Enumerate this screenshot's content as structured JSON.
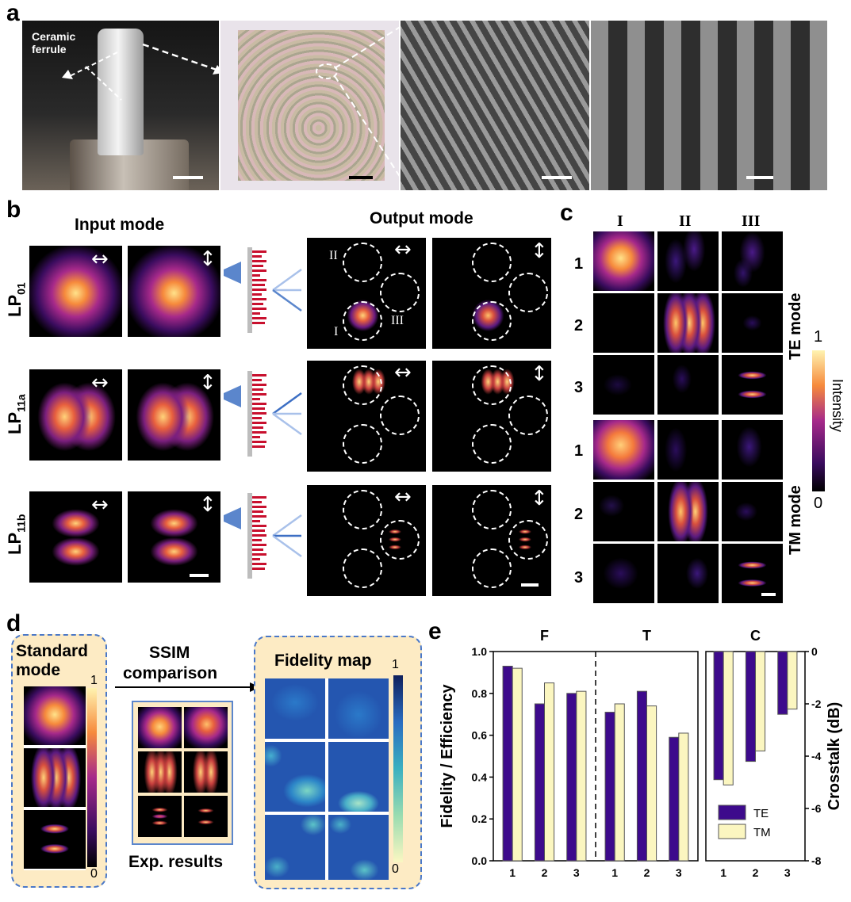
{
  "panels": {
    "a": "a",
    "b": "b",
    "c": "c",
    "d": "d",
    "e": "e"
  },
  "panel_a": {
    "ferrule_label_line1": "Ceramic",
    "ferrule_label_line2": "ferrule"
  },
  "panel_b": {
    "input_heading": "Input mode",
    "output_heading": "Output mode",
    "rows": [
      {
        "base": "LP",
        "sub": "01"
      },
      {
        "base": "LP",
        "sub": "11a"
      },
      {
        "base": "LP",
        "sub": "11b"
      }
    ],
    "roman": {
      "r1": "I",
      "r2": "II",
      "r3": "III"
    }
  },
  "panel_c": {
    "columns": [
      "I",
      "II",
      "III"
    ],
    "rows": [
      "1",
      "2",
      "3",
      "1",
      "2",
      "3"
    ],
    "te_label": "TE mode",
    "tm_label": "TM mode",
    "cbar_max": "1",
    "cbar_min": "0",
    "cbar_label": "Intensity"
  },
  "panel_d": {
    "standard_mode": "Standard mode",
    "ssim": "SSIM",
    "comparison": "comparison",
    "fidelity_map": "Fidelity map",
    "exp_results": "Exp. results",
    "std_cbar_max": "1",
    "std_cbar_min": "0",
    "fid_cbar_max": "1",
    "fid_cbar_min": "0"
  },
  "chart_data": [
    {
      "type": "bar",
      "title": "F",
      "categories": [
        "1",
        "2",
        "3"
      ],
      "series": [
        {
          "name": "TE",
          "values": [
            0.93,
            0.75,
            0.8
          ]
        },
        {
          "name": "TM",
          "values": [
            0.92,
            0.85,
            0.81
          ]
        }
      ],
      "ylabel": "Fidelity / Efficiency",
      "ylim": [
        0,
        1.0
      ],
      "yticks": [
        "0.0",
        "0.2",
        "0.4",
        "0.6",
        "0.8",
        "1.0"
      ]
    },
    {
      "type": "bar",
      "title": "T",
      "categories": [
        "1",
        "2",
        "3"
      ],
      "series": [
        {
          "name": "TE",
          "values": [
            0.71,
            0.81,
            0.59
          ]
        },
        {
          "name": "TM",
          "values": [
            0.75,
            0.74,
            0.61
          ]
        }
      ],
      "ylim": [
        0,
        1.0
      ]
    },
    {
      "type": "bar",
      "title": "C",
      "categories": [
        "1",
        "2",
        "3"
      ],
      "series": [
        {
          "name": "TE",
          "values": [
            -4.9,
            -4.2,
            -2.4
          ]
        },
        {
          "name": "TM",
          "values": [
            -5.1,
            -3.8,
            -2.2
          ]
        }
      ],
      "ylabel": "Crosstalk (dB)",
      "ylim": [
        -8,
        0
      ],
      "yticks": [
        "0",
        "-2",
        "-4",
        "-6",
        "-8"
      ],
      "legend": [
        "TE",
        "TM"
      ],
      "legend_position": "bottom-right"
    }
  ],
  "colors": {
    "te": "#3d0a8c",
    "tm": "#fbf6c0",
    "dashed_blue": "#4a78c8",
    "panel_fill": "#fdebc4"
  }
}
